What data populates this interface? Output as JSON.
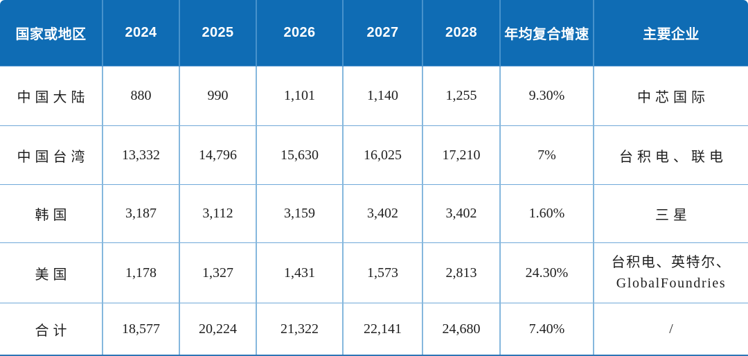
{
  "table": {
    "header": [
      "国家或地区",
      "2024",
      "2025",
      "2026",
      "2027",
      "2028",
      "年均复合增速",
      "主要企业"
    ],
    "rows": [
      {
        "cells": [
          "中国大陆",
          "880",
          "990",
          "1,101",
          "1,140",
          "1,255",
          "9.30%",
          "中芯国际"
        ]
      },
      {
        "cells": [
          "中国台湾",
          "13,332",
          "14,796",
          "15,630",
          "16,025",
          "17,210",
          "7%",
          "台积电、联电"
        ]
      },
      {
        "cells": [
          "韩国",
          "3,187",
          "3,112",
          "3,159",
          "3,402",
          "3,402",
          "1.60%",
          "三星"
        ]
      },
      {
        "cells": [
          "美国",
          "1,178",
          "1,327",
          "1,431",
          "1,573",
          "2,813",
          "24.30%",
          "台积电、英特尔、GlobalFoundries"
        ]
      },
      {
        "cells": [
          "合计",
          "18,577",
          "20,224",
          "21,322",
          "22,141",
          "24,680",
          "7.40%",
          "/"
        ]
      }
    ]
  },
  "colors": {
    "header_bg": "#0F6CB4",
    "header_text": "#FFFFFF",
    "header_divider": "#4792CC",
    "grid_vertical": "#85B7DD",
    "grid_horizontal": "#6FA8D8",
    "bottom_rule": "#2E75B6",
    "body_text": "#1F1F1F",
    "background": "#FFFFFF"
  }
}
